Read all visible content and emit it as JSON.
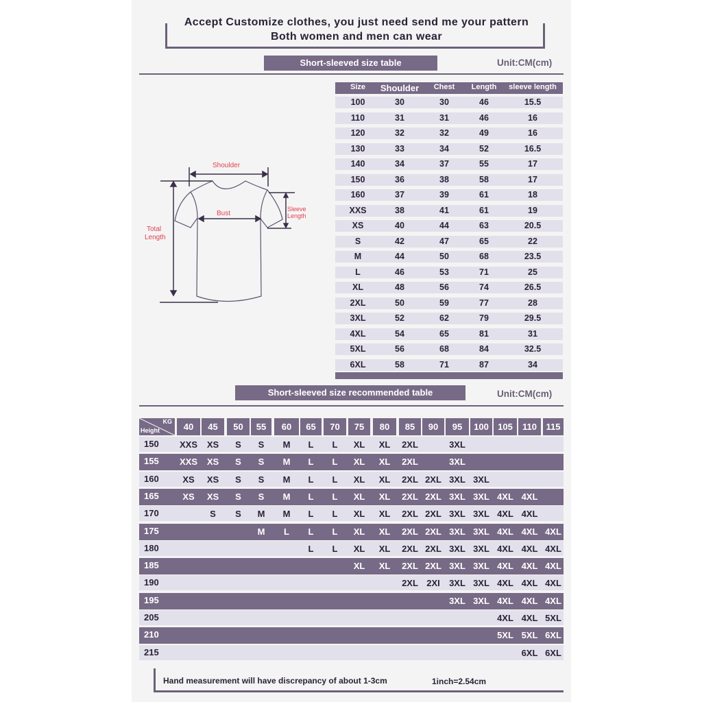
{
  "header": {
    "line1": "Accept Customize clothes, you just need send me your pattern",
    "line2": "Both women and men can wear"
  },
  "size_table": {
    "title": "Short-sleeved size  table",
    "unit": "Unit:CM(cm)",
    "columns": [
      "Size",
      "Shoulder",
      "Chest",
      "Length",
      "sleeve length"
    ],
    "rows": [
      [
        "100",
        "30",
        "30",
        "46",
        "15.5"
      ],
      [
        "110",
        "31",
        "31",
        "46",
        "16"
      ],
      [
        "120",
        "32",
        "32",
        "49",
        "16"
      ],
      [
        "130",
        "33",
        "34",
        "52",
        "16.5"
      ],
      [
        "140",
        "34",
        "37",
        "55",
        "17"
      ],
      [
        "150",
        "36",
        "38",
        "58",
        "17"
      ],
      [
        "160",
        "37",
        "39",
        "61",
        "18"
      ],
      [
        "XXS",
        "38",
        "41",
        "61",
        "19"
      ],
      [
        "XS",
        "40",
        "44",
        "63",
        "20.5"
      ],
      [
        "S",
        "42",
        "47",
        "65",
        "22"
      ],
      [
        "M",
        "44",
        "50",
        "68",
        "23.5"
      ],
      [
        "L",
        "46",
        "53",
        "71",
        "25"
      ],
      [
        "XL",
        "48",
        "56",
        "74",
        "26.5"
      ],
      [
        "2XL",
        "50",
        "59",
        "77",
        "28"
      ],
      [
        "3XL",
        "52",
        "62",
        "79",
        "29.5"
      ],
      [
        "4XL",
        "54",
        "65",
        "81",
        "31"
      ],
      [
        "5XL",
        "56",
        "68",
        "84",
        "32.5"
      ],
      [
        "6XL",
        "58",
        "71",
        "87",
        "34"
      ]
    ]
  },
  "diagram": {
    "shoulder": "Shoulder",
    "bust": "Bust",
    "sleeve_1": "Sleeve",
    "sleeve_2": "Length",
    "total_1": "Total",
    "total_2": "Length",
    "label_color": "#e0404f"
  },
  "recommend_table": {
    "title": "Short-sleeved size recommended table",
    "unit": "Unit:CM(cm)",
    "corner_kg": "KG",
    "corner_height": "Height",
    "weights": [
      "40",
      "45",
      "50",
      "55",
      "60",
      "65",
      "70",
      "75",
      "80",
      "85",
      "90",
      "95",
      "100",
      "105",
      "110",
      "115"
    ],
    "rows": [
      {
        "height": "150",
        "sizes": [
          "XXS",
          "XS",
          "S",
          "S",
          "M",
          "L",
          "L",
          "XL",
          "XL",
          "2XL",
          "",
          "3XL",
          "",
          "",
          "",
          ""
        ]
      },
      {
        "height": "155",
        "sizes": [
          "XXS",
          "XS",
          "S",
          "S",
          "M",
          "L",
          "L",
          "XL",
          "XL",
          "2XL",
          "",
          "3XL",
          "",
          "",
          "",
          ""
        ]
      },
      {
        "height": "160",
        "sizes": [
          "XS",
          "XS",
          "S",
          "S",
          "M",
          "L",
          "L",
          "XL",
          "XL",
          "2XL",
          "2XL",
          "3XL",
          "3XL",
          "",
          "",
          ""
        ]
      },
      {
        "height": "165",
        "sizes": [
          "XS",
          "XS",
          "S",
          "S",
          "M",
          "L",
          "L",
          "XL",
          "XL",
          "2XL",
          "2XL",
          "3XL",
          "3XL",
          "4XL",
          "4XL",
          ""
        ]
      },
      {
        "height": "170",
        "sizes": [
          "",
          "S",
          "S",
          "M",
          "M",
          "L",
          "L",
          "XL",
          "XL",
          "2XL",
          "2XL",
          "3XL",
          "3XL",
          "4XL",
          "4XL",
          ""
        ]
      },
      {
        "height": "175",
        "sizes": [
          "",
          "",
          "",
          "M",
          "L",
          "L",
          "L",
          "XL",
          "XL",
          "2XL",
          "2XL",
          "3XL",
          "3XL",
          "4XL",
          "4XL",
          "4XL"
        ]
      },
      {
        "height": "180",
        "sizes": [
          "",
          "",
          "",
          "",
          "",
          "L",
          "L",
          "XL",
          "XL",
          "2XL",
          "2XL",
          "3XL",
          "3XL",
          "4XL",
          "4XL",
          "4XL"
        ]
      },
      {
        "height": "185",
        "sizes": [
          "",
          "",
          "",
          "",
          "",
          "",
          "",
          "XL",
          "XL",
          "2XL",
          "2XL",
          "3XL",
          "3XL",
          "4XL",
          "4XL",
          "4XL"
        ]
      },
      {
        "height": "190",
        "sizes": [
          "",
          "",
          "",
          "",
          "",
          "",
          "",
          "",
          "",
          "2XL",
          "2XI",
          "3XL",
          "3XL",
          "4XL",
          "4XL",
          "4XL"
        ]
      },
      {
        "height": "195",
        "sizes": [
          "",
          "",
          "",
          "",
          "",
          "",
          "",
          "",
          "",
          "",
          "",
          "3XL",
          "3XL",
          "4XL",
          "4XL",
          "4XL"
        ]
      },
      {
        "height": "205",
        "sizes": [
          "",
          "",
          "",
          "",
          "",
          "",
          "",
          "",
          "",
          "",
          "",
          "",
          "",
          "4XL",
          "4XL",
          "5XL"
        ]
      },
      {
        "height": "210",
        "sizes": [
          "",
          "",
          "",
          "",
          "",
          "",
          "",
          "",
          "",
          "",
          "",
          "",
          "",
          "5XL",
          "5XL",
          "6XL"
        ]
      },
      {
        "height": "215",
        "sizes": [
          "",
          "",
          "",
          "",
          "",
          "",
          "",
          "",
          "",
          "",
          "",
          "",
          "",
          "",
          "6XL",
          "6XL"
        ]
      }
    ]
  },
  "footer": {
    "note": "Hand measurement will have discrepancy of about  1-3cm",
    "conversion": "1inch=2.54cm"
  },
  "colors": {
    "accent": "#776a86",
    "row_light": "#e2e0ea",
    "background": "#f4f4f4"
  }
}
